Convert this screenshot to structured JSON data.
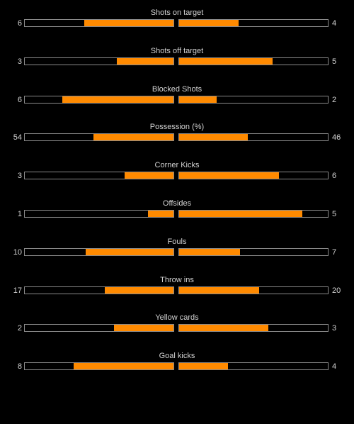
{
  "colors": {
    "background": "#000000",
    "bar_fill": "#ff8a00",
    "bar_border": "#8a8a8a",
    "text": "#d4d4d4"
  },
  "stats": [
    {
      "label": "Shots on target",
      "home": "6",
      "away": "4",
      "home_fill": 0.6,
      "away_fill": 0.4
    },
    {
      "label": "Shots off target",
      "home": "3",
      "away": "5",
      "home_fill": 0.38,
      "away_fill": 0.63
    },
    {
      "label": "Blocked Shots",
      "home": "6",
      "away": "2",
      "home_fill": 0.75,
      "away_fill": 0.25
    },
    {
      "label": "Possession (%)",
      "home": "54",
      "away": "46",
      "home_fill": 0.54,
      "away_fill": 0.46
    },
    {
      "label": "Corner Kicks",
      "home": "3",
      "away": "6",
      "home_fill": 0.33,
      "away_fill": 0.67
    },
    {
      "label": "Offsides",
      "home": "1",
      "away": "5",
      "home_fill": 0.17,
      "away_fill": 0.83
    },
    {
      "label": "Fouls",
      "home": "10",
      "away": "7",
      "home_fill": 0.59,
      "away_fill": 0.41
    },
    {
      "label": "Throw ins",
      "home": "17",
      "away": "20",
      "home_fill": 0.46,
      "away_fill": 0.54
    },
    {
      "label": "Yellow cards",
      "home": "2",
      "away": "3",
      "home_fill": 0.4,
      "away_fill": 0.6
    },
    {
      "label": "Goal kicks",
      "home": "8",
      "away": "4",
      "home_fill": 0.67,
      "away_fill": 0.33
    }
  ]
}
